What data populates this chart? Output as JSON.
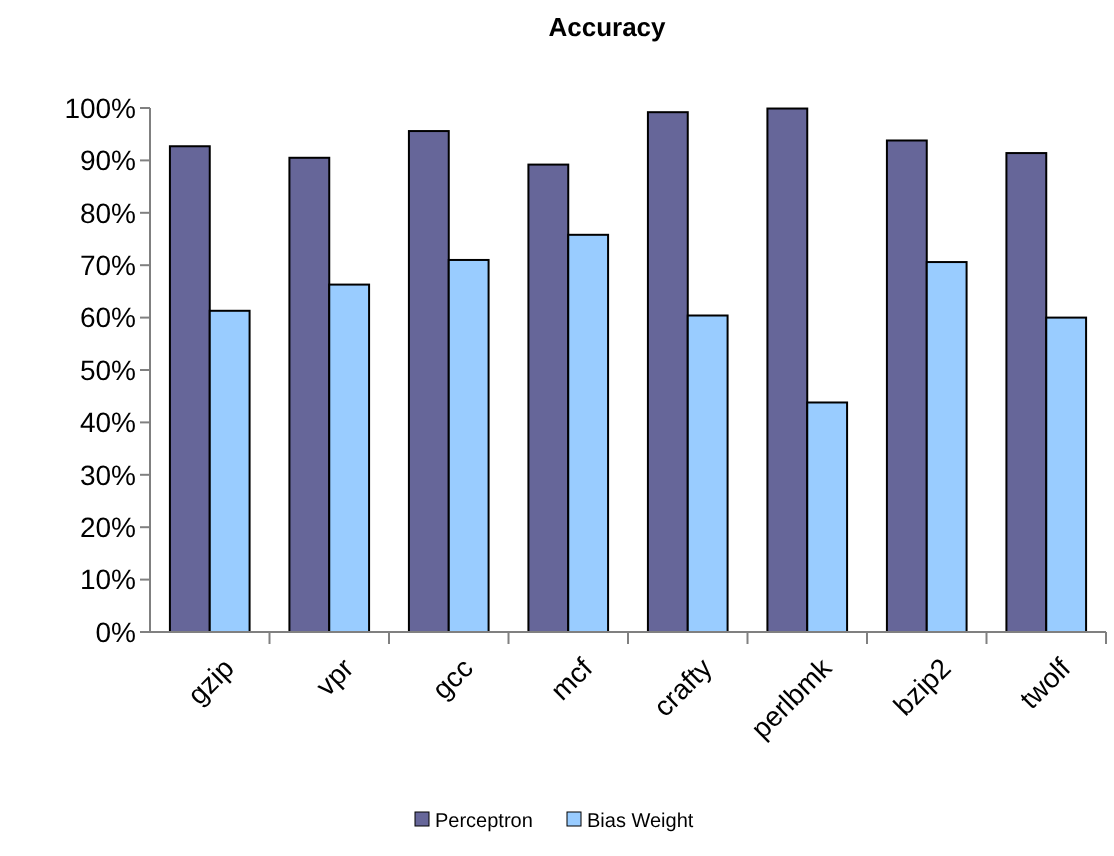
{
  "chart_data": {
    "type": "bar",
    "title": "Accuracy",
    "categories": [
      "gzip",
      "vpr",
      "gcc",
      "mcf",
      "crafty",
      "perlbmk",
      "bzip2",
      "twolf"
    ],
    "series": [
      {
        "name": "Perceptron",
        "color": "#666699",
        "values": [
          0.927,
          0.905,
          0.956,
          0.892,
          0.992,
          0.999,
          0.938,
          0.914
        ]
      },
      {
        "name": "Bias Weight",
        "color": "#99ccff",
        "values": [
          0.613,
          0.663,
          0.71,
          0.758,
          0.604,
          0.438,
          0.706,
          0.6
        ]
      }
    ],
    "ylim": [
      0,
      1
    ],
    "yticks": [
      {
        "value": 0,
        "label": "0%"
      },
      {
        "value": 0.1,
        "label": "10%"
      },
      {
        "value": 0.2,
        "label": "20%"
      },
      {
        "value": 0.3,
        "label": "30%"
      },
      {
        "value": 0.4,
        "label": "40%"
      },
      {
        "value": 0.5,
        "label": "50%"
      },
      {
        "value": 0.6,
        "label": "60%"
      },
      {
        "value": 0.7,
        "label": "70%"
      },
      {
        "value": 0.8,
        "label": "80%"
      },
      {
        "value": 0.9,
        "label": "90%"
      },
      {
        "value": 1,
        "label": "100%"
      }
    ],
    "grid": false,
    "legend": "bottom"
  }
}
